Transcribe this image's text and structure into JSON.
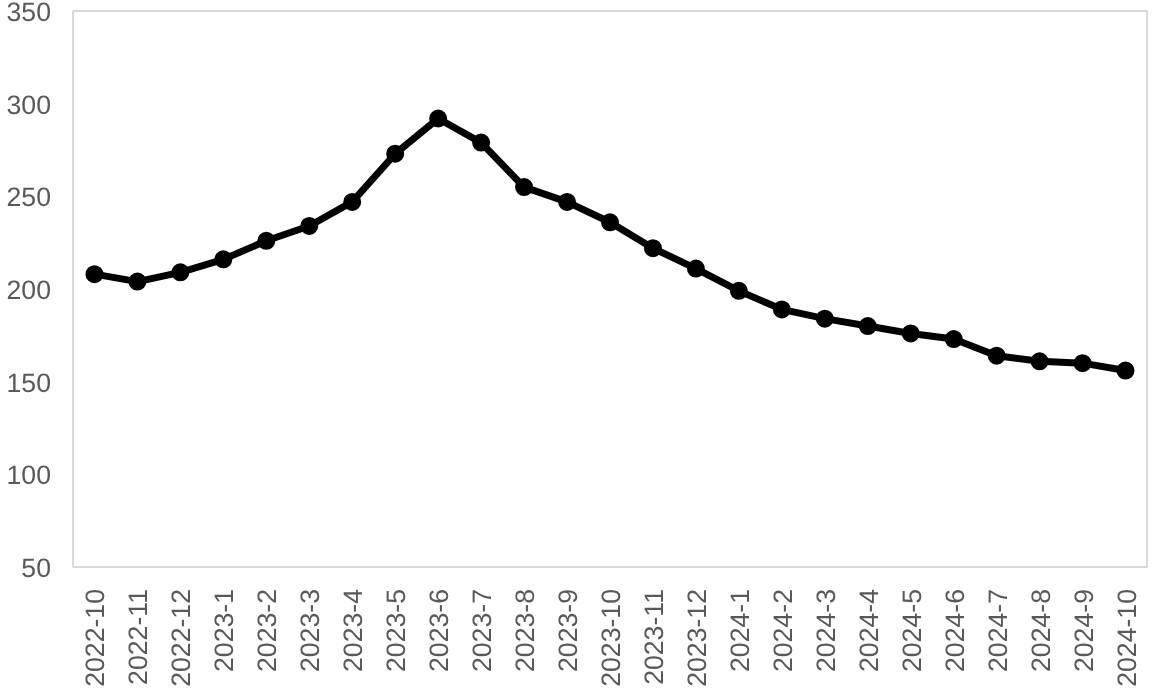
{
  "chart_data": {
    "type": "line",
    "categories": [
      "2022-10",
      "2022-11",
      "2022-12",
      "2023-1",
      "2023-2",
      "2023-3",
      "2023-4",
      "2023-5",
      "2023-6",
      "2023-7",
      "2023-8",
      "2023-9",
      "2023-10",
      "2023-11",
      "2023-12",
      "2024-1",
      "2024-2",
      "2024-3",
      "2024-4",
      "2024-5",
      "2024-6",
      "2024-7",
      "2024-8",
      "2024-9",
      "2024-10"
    ],
    "series": [
      {
        "color": "#000000",
        "values": [
          208,
          204,
          209,
          216,
          226,
          234,
          247,
          273,
          292,
          279,
          255,
          247,
          236,
          222,
          211,
          199,
          189,
          184,
          180,
          176,
          173,
          164,
          161,
          160,
          156
        ]
      }
    ],
    "ylim": [
      50,
      350
    ],
    "yticks": [
      50,
      100,
      150,
      200,
      250,
      300,
      350
    ],
    "grid": false,
    "marker": "circle",
    "line_style": "solid"
  }
}
